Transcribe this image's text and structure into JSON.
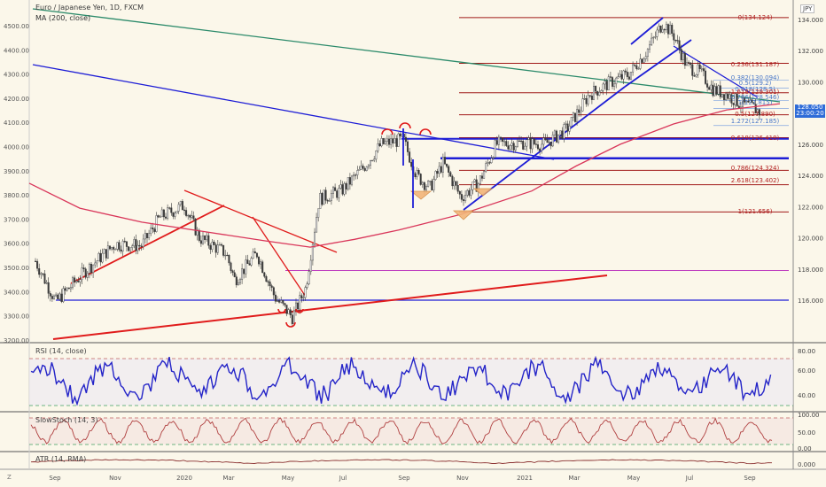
{
  "header": {
    "symbol_title": "Euro / Japanese Yen, 1D, FXCM",
    "ma_label": "MA (200, close)"
  },
  "price_axis": {
    "unit": "JPY",
    "ticks": [
      "134.000",
      "132.000",
      "130.000",
      "128.000",
      "126.000",
      "124.000",
      "122.000",
      "120.000",
      "118.000",
      "116.000"
    ],
    "last_price": "128.050",
    "countdown": "23:00:20"
  },
  "left_axis": {
    "ticks": [
      "4500.00",
      "4400.00",
      "4300.00",
      "4200.00",
      "4100.00",
      "4000.00",
      "3900.00",
      "3800.00",
      "3700.00",
      "3600.00",
      "3500.00",
      "3400.00",
      "3300.00",
      "3200.00"
    ]
  },
  "fib_labels": [
    {
      "text": "0(134.124)",
      "color": "#b22020"
    },
    {
      "text": "0.236(131.187)",
      "color": "#b22020"
    },
    {
      "text": "0.382(130.094)",
      "color": "#4a78c8"
    },
    {
      "text": "0.5(129.2)",
      "color": "#4a78c8"
    },
    {
      "text": "0.618(128.5)",
      "color": "#4a78c8"
    },
    {
      "text": "1.618(129.301)",
      "color": "#b22020"
    },
    {
      "text": "0.786(128.546)",
      "color": "#4a78c8"
    },
    {
      "text": "1(127.815)",
      "color": "#4a78c8"
    },
    {
      "text": "0.5(127.890)",
      "color": "#b22020"
    },
    {
      "text": "1.272(127.185)",
      "color": "#4a78c8"
    },
    {
      "text": "0.618(126.418)",
      "color": "#b22020"
    },
    {
      "text": "0.786(124.324)",
      "color": "#b22020"
    },
    {
      "text": "2.618(123.402)",
      "color": "#b22020"
    },
    {
      "text": "1(121.656)",
      "color": "#b22020"
    }
  ],
  "rsi": {
    "title": "RSI (14, close)",
    "ticks": [
      "80.00",
      "60.00",
      "40.00"
    ]
  },
  "stoch": {
    "title": "SlowStoch (14, 3)",
    "ticks": [
      "100.00",
      "50.00",
      "0.00"
    ]
  },
  "atr": {
    "title": "ATR (14, RMA)",
    "ticks": [
      "0.000"
    ]
  },
  "time_axis": {
    "labels": [
      "Sep",
      "Nov",
      "2020",
      "Mar",
      "May",
      "Jul",
      "Sep",
      "Nov",
      "2021",
      "Mar",
      "May",
      "Jul",
      "Sep"
    ]
  },
  "corner_z": "Z",
  "colors": {
    "background": "#fbf7ea",
    "ma_line": "#d9365a",
    "trend_red": "#e01b1b",
    "trend_blue": "#1d1dd6",
    "trend_green": "#2b8a6a",
    "rsi_line": "#2424c8",
    "stoch_line": "#b04040",
    "badge": "#2f6cd8"
  },
  "chart_data": {
    "type": "line",
    "title": "Euro / Japanese Yen, 1D, FXCM",
    "ylabel": "JPY",
    "ylim": [
      115.5,
      134.8
    ],
    "series": [
      {
        "name": "close",
        "x": [
          "Sep",
          "Nov",
          "2020",
          "Mar",
          "May",
          "Jul",
          "Sep",
          "Nov",
          "2021",
          "Mar",
          "May",
          "Jul",
          "Sep"
        ],
        "values": [
          116.0,
          118.6,
          121.5,
          120.0,
          114.6,
          119.5,
          126.2,
          122.3,
          126.5,
          128.8,
          133.8,
          129.8,
          128.05
        ]
      },
      {
        "name": "MA (200, close)",
        "values": [
          123.5,
          121.0,
          121.0,
          119.9,
          119.5,
          119.6,
          121.0,
          122.5,
          124.0,
          126.5,
          127.5,
          128.2,
          128.3
        ]
      }
    ],
    "horizontal_levels": [
      134.124,
      131.187,
      129.301,
      127.89,
      126.418,
      124.324,
      123.402,
      121.656,
      118.0,
      116.0
    ]
  }
}
